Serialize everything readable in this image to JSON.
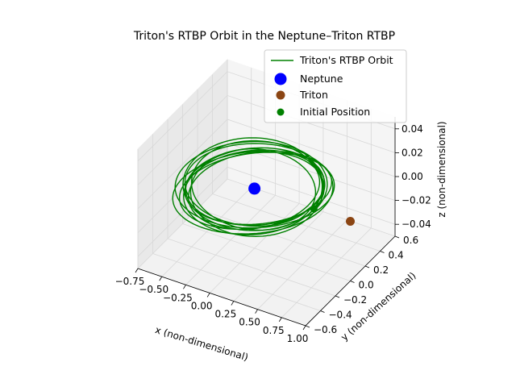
{
  "chart_data": {
    "type": "line",
    "projection": "3d",
    "title": "Triton's RTBP Orbit in the Neptune–Triton RTBP",
    "xlabel": "x (non-dimensional)",
    "ylabel": "y (non-dimensional)",
    "zlabel": "z (non-dimensional)",
    "xlim": [
      -0.75,
      1.0
    ],
    "ylim": [
      -0.6,
      0.6
    ],
    "zlim": [
      -0.05,
      0.05
    ],
    "xticks": [
      "−0.75",
      "−0.50",
      "−0.25",
      "0.00",
      "0.25",
      "0.50",
      "0.75",
      "1.00"
    ],
    "yticks": [
      "−0.6",
      "−0.4",
      "−0.2",
      "0.0",
      "0.2",
      "0.4",
      "0.6"
    ],
    "zticks": [
      "−0.04",
      "−0.02",
      "0.00",
      "0.02",
      "0.04"
    ],
    "grid": true,
    "legend_position": "upper right",
    "series": [
      {
        "name": "Triton's RTBP Orbit",
        "kind": "line",
        "color": "#008000",
        "orbit": {
          "center": [
            0.0,
            0.0
          ],
          "radius_range": [
            0.58,
            0.66
          ],
          "z": 0.0,
          "revolutions": 11
        }
      },
      {
        "name": "Neptune",
        "kind": "point",
        "color": "#0000ff",
        "x": 0.0,
        "y": 0.0,
        "z": 0.0
      },
      {
        "name": "Triton",
        "kind": "point",
        "color": "#8b4513",
        "x": 1.0,
        "y": 0.0,
        "z": 0.0
      },
      {
        "name": "Initial Position",
        "kind": "point",
        "color": "#008000",
        "x": 0.62,
        "y": 0.0,
        "z": 0.0
      }
    ]
  }
}
